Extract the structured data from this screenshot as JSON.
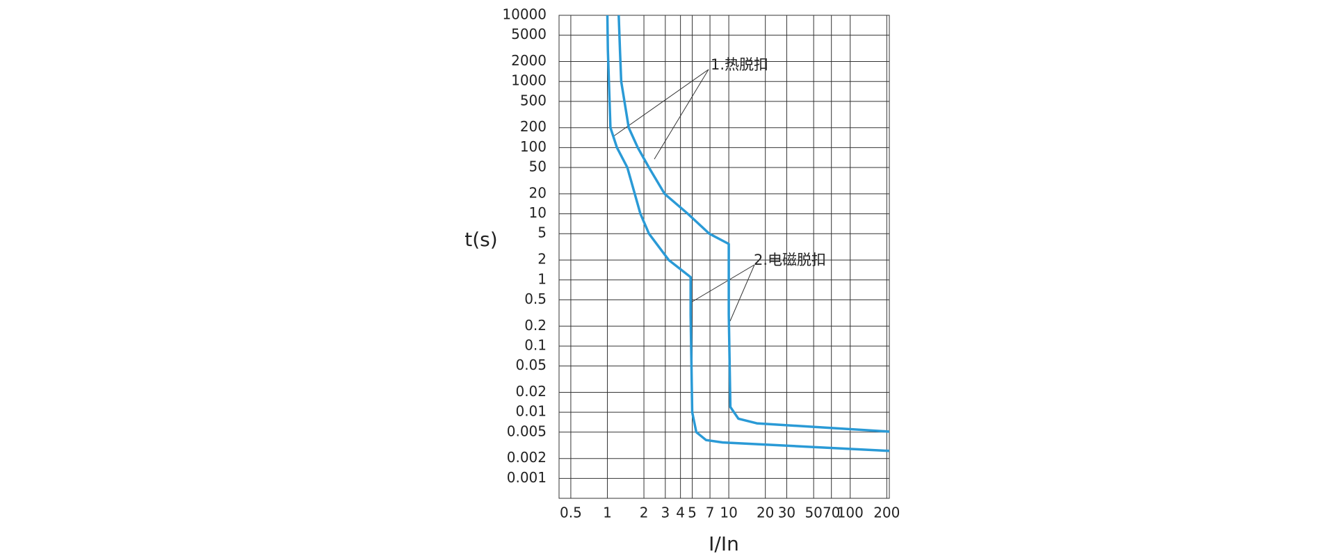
{
  "chart_data": {
    "type": "line",
    "x_label": "I/In",
    "y_label": "t(s)",
    "xscale": "log",
    "yscale": "log",
    "grid": true,
    "xlim": [
      0.4,
      210
    ],
    "ylim": [
      0.0005,
      10000
    ],
    "xticks": [
      0.5,
      1,
      2,
      3,
      4,
      5,
      7,
      10,
      20,
      30,
      50,
      70,
      100,
      200
    ],
    "yticks": [
      10000,
      5000,
      2000,
      1000,
      500,
      200,
      100,
      50,
      20,
      10,
      5,
      2,
      1,
      0.5,
      0.2,
      0.1,
      0.05,
      0.02,
      0.01,
      0.005,
      0.002,
      0.001
    ],
    "annotations": [
      "1.热脱扣",
      "2.电磁脱扣"
    ],
    "series": [
      {
        "color": "#2a9ad6",
        "x": [
          1.0,
          1.01,
          1.03,
          1.06,
          1.2,
          1.46,
          1.87,
          2.2,
          3.2,
          4.85,
          4.85,
          5.0,
          5.4,
          6.5,
          8.9,
          210
        ],
        "values": [
          10000,
          3000,
          1000,
          200,
          100,
          50,
          10,
          5,
          2,
          1.1,
          0.3,
          0.01,
          0.005,
          0.0038,
          0.0035,
          0.0026
        ]
      },
      {
        "color": "#2a9ad6",
        "x": [
          1.24,
          1.27,
          1.3,
          1.5,
          1.78,
          2.2,
          2.96,
          4.6,
          6.9,
          10,
          10,
          10.3,
          12,
          17,
          210
        ],
        "values": [
          10000,
          3000,
          1000,
          200,
          100,
          50,
          20,
          10,
          5,
          3.5,
          0.3,
          0.012,
          0.008,
          0.0068,
          0.0051
        ]
      }
    ]
  }
}
